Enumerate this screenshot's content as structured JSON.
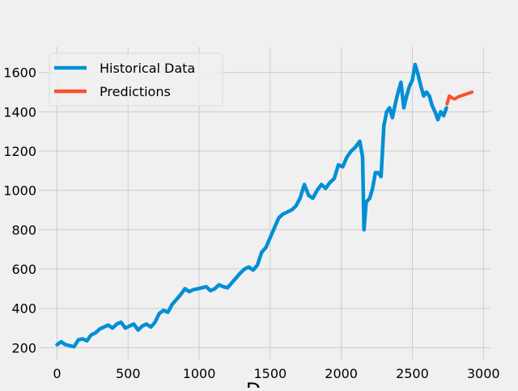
{
  "chart_data": {
    "type": "line",
    "title": "",
    "xlabel": "D",
    "ylabel": "",
    "xlim": [
      -128,
      3050
    ],
    "ylim": [
      140,
      1730
    ],
    "x_ticks": [
      0,
      500,
      1000,
      1500,
      2000,
      2500,
      3000
    ],
    "y_ticks": [
      200,
      400,
      600,
      800,
      1000,
      1200,
      1400,
      1600
    ],
    "grid": true,
    "legend_position": "upper left",
    "series": [
      {
        "name": "Historical Data",
        "color": "#008fd5",
        "x": [
          0,
          30,
          60,
          90,
          120,
          150,
          180,
          210,
          240,
          270,
          300,
          330,
          360,
          390,
          420,
          450,
          480,
          510,
          540,
          570,
          600,
          630,
          660,
          690,
          720,
          750,
          780,
          810,
          840,
          870,
          900,
          930,
          960,
          990,
          1020,
          1050,
          1080,
          1110,
          1140,
          1170,
          1200,
          1230,
          1260,
          1290,
          1320,
          1350,
          1380,
          1410,
          1440,
          1470,
          1500,
          1530,
          1560,
          1590,
          1620,
          1650,
          1680,
          1710,
          1740,
          1770,
          1800,
          1830,
          1860,
          1890,
          1920,
          1950,
          1980,
          2010,
          2040,
          2070,
          2100,
          2130,
          2150,
          2160,
          2175,
          2200,
          2220,
          2240,
          2260,
          2280,
          2300,
          2320,
          2340,
          2360,
          2380,
          2400,
          2420,
          2440,
          2460,
          2480,
          2500,
          2520,
          2540,
          2560,
          2580,
          2600,
          2620,
          2640,
          2660,
          2680,
          2700,
          2720,
          2740
        ],
        "y": [
          215,
          230,
          215,
          210,
          205,
          240,
          245,
          235,
          265,
          275,
          295,
          305,
          315,
          300,
          320,
          330,
          300,
          310,
          320,
          290,
          310,
          320,
          305,
          330,
          375,
          390,
          380,
          420,
          445,
          470,
          500,
          485,
          495,
          500,
          505,
          510,
          490,
          500,
          520,
          510,
          505,
          530,
          555,
          580,
          600,
          610,
          595,
          620,
          685,
          710,
          760,
          810,
          860,
          880,
          890,
          900,
          920,
          960,
          1030,
          975,
          960,
          1000,
          1030,
          1010,
          1040,
          1060,
          1130,
          1120,
          1170,
          1200,
          1220,
          1250,
          1170,
          800,
          940,
          960,
          1010,
          1090,
          1090,
          1070,
          1330,
          1400,
          1420,
          1370,
          1440,
          1500,
          1550,
          1420,
          1480,
          1530,
          1560,
          1640,
          1590,
          1530,
          1480,
          1500,
          1480,
          1430,
          1400,
          1360,
          1400,
          1380,
          1420
        ]
      },
      {
        "name": "Predictions",
        "color": "#fc4f30",
        "x": [
          2745,
          2760,
          2780,
          2800,
          2820,
          2840,
          2860,
          2880,
          2900,
          2920
        ],
        "y": [
          1440,
          1480,
          1470,
          1465,
          1475,
          1480,
          1485,
          1490,
          1495,
          1500
        ]
      }
    ]
  }
}
